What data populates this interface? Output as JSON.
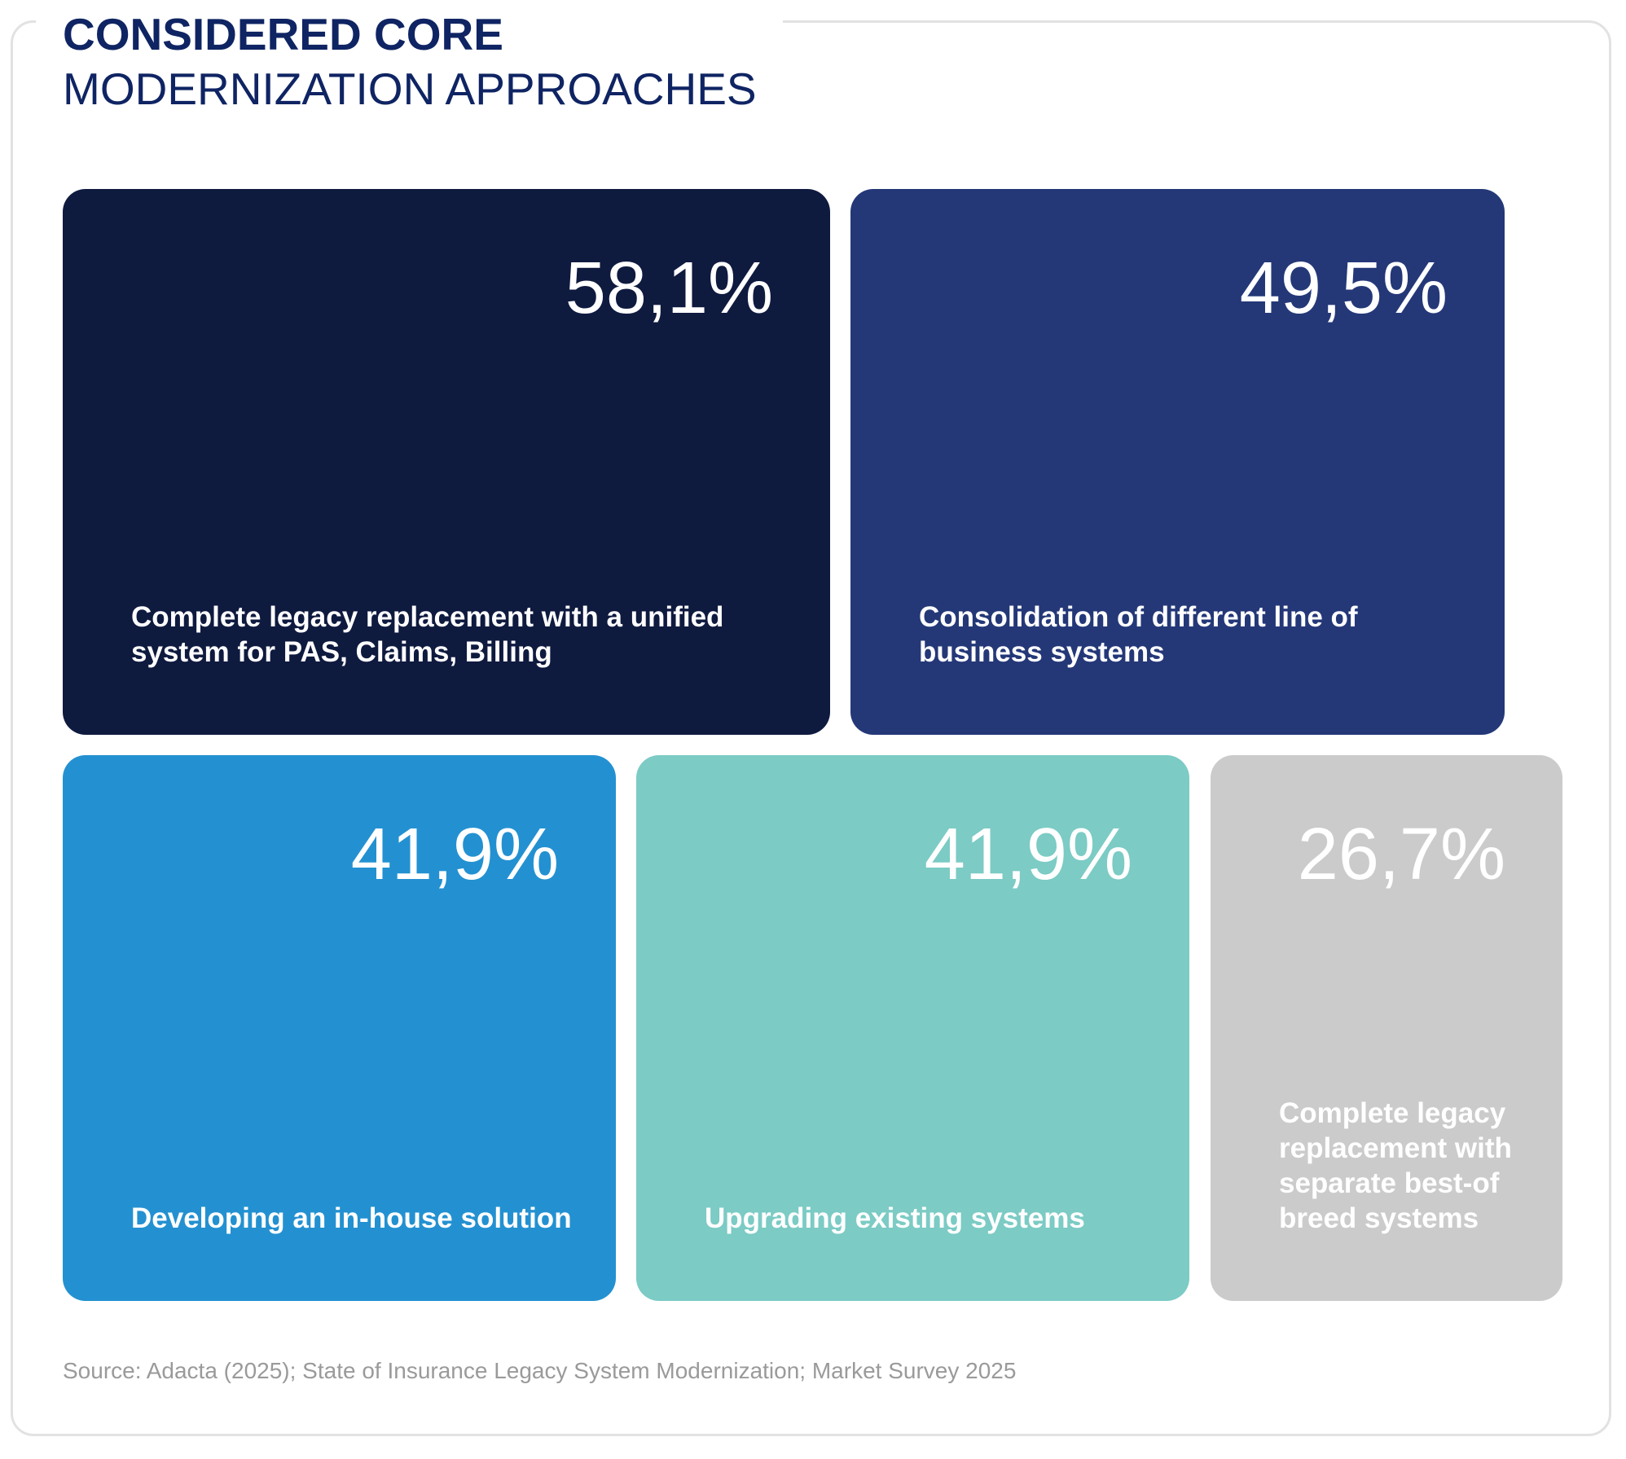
{
  "chart_data": {
    "type": "treemap",
    "title": "CONSIDERED CORE",
    "subtitle": "MODERNIZATION APPROACHES",
    "unit": "%",
    "decimal_separator": ",",
    "items": [
      {
        "label": "Complete legacy replacement with a unified system for PAS, Claims, Billing",
        "value": 58.1,
        "value_text": "58,1%",
        "color": "#0f1a3f"
      },
      {
        "label": "Consolidation of different line of business systems",
        "value": 49.5,
        "value_text": "49,5%",
        "color": "#243878"
      },
      {
        "label": "Developing an in-house solution",
        "value": 41.9,
        "value_text": "41,9%",
        "color": "#2391d1"
      },
      {
        "label": "Upgrading existing systems",
        "value": 41.9,
        "value_text": "41,9%",
        "color": "#7ccbc5"
      },
      {
        "label": "Complete legacy replacement with separate best-of breed systems",
        "value": 26.7,
        "value_text": "26,7%",
        "color": "#cbcbcb"
      }
    ],
    "source": "Source: Adacta (2025); State of Insurance Legacy System Modernization; Market Survey 2025"
  },
  "colors": {
    "title": "#0f2463",
    "source_text": "#9a9a9a",
    "frame_border": "#e2e2e2"
  }
}
